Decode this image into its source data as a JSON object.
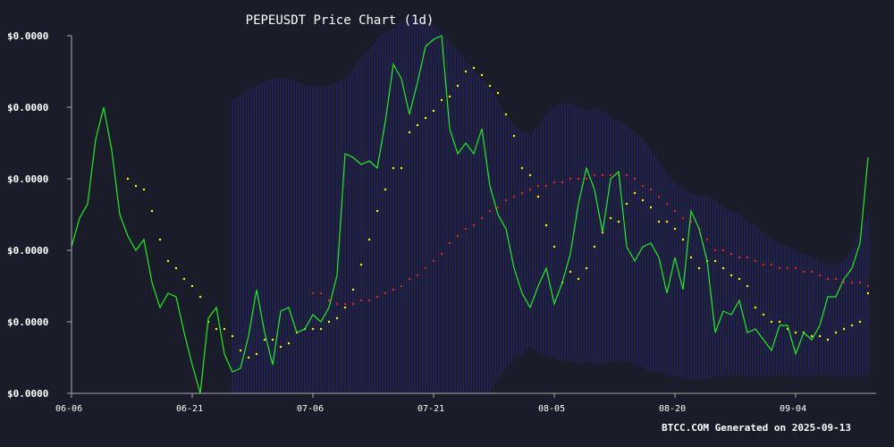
{
  "chart_data": {
    "type": "line",
    "title": "PEPEUSDT Price Chart (1d)",
    "footer": "BTCC.COM Generated on 2025-09-13",
    "y_tick_labels": [
      "$0.0000",
      "$0.0000",
      "$0.0000",
      "$0.0000",
      "$0.0000",
      "$0.0000"
    ],
    "x_tick_labels": [
      "06-06",
      "06-21",
      "07-06",
      "07-21",
      "08-05",
      "08-20",
      "09-04"
    ],
    "x_tick_days": [
      0,
      15,
      30,
      45,
      60,
      75,
      90
    ],
    "ylim": [
      0,
      100
    ],
    "grid": false,
    "colors": {
      "background": "#1a1d29",
      "price": "#22ee22",
      "sma_short": "#ffff00",
      "sma_long": "#ee2222",
      "band": "#2a2a8a",
      "axis": "#aaaaaa"
    },
    "series": [
      {
        "key": "price",
        "values": [
          41,
          49,
          53,
          71,
          80,
          68,
          50,
          44,
          40,
          43,
          31,
          24,
          28,
          27,
          17,
          8,
          0,
          21,
          24,
          11,
          6,
          7,
          16,
          29,
          17,
          8,
          23,
          24,
          17,
          18,
          22,
          20,
          24,
          33,
          67,
          66,
          64,
          65,
          63,
          76,
          92,
          88,
          78,
          87,
          97,
          99,
          100,
          74,
          67,
          70,
          67,
          74,
          58,
          50,
          46,
          35,
          28,
          24,
          30,
          35,
          25,
          31,
          39,
          53,
          63,
          57,
          45,
          60,
          62,
          41,
          37,
          41,
          42,
          38,
          28,
          38,
          29,
          51,
          46,
          37,
          17,
          23,
          22,
          26,
          17,
          18,
          15,
          12,
          19,
          19,
          11,
          17,
          15,
          19,
          27,
          27,
          32,
          35,
          42,
          66
        ]
      },
      {
        "key": "sma_short",
        "start": 7,
        "values": [
          60,
          58,
          57,
          51,
          43,
          37,
          35,
          32,
          30,
          27,
          20,
          18,
          18,
          16,
          12,
          10,
          11,
          15,
          15,
          13,
          14,
          17,
          18,
          18,
          18,
          20,
          21,
          24,
          29,
          36,
          43,
          51,
          57,
          63,
          63,
          73,
          75,
          77,
          79,
          82,
          83,
          86,
          90,
          91,
          89,
          86,
          84,
          78,
          72,
          63,
          61,
          55,
          47,
          41,
          31,
          34,
          32,
          35,
          41,
          45,
          49,
          48,
          53,
          56,
          54,
          52,
          48,
          48,
          46,
          43,
          38,
          35,
          37,
          37,
          35,
          33,
          32,
          30,
          24,
          22,
          20,
          20,
          18,
          17,
          17,
          16,
          16,
          15,
          17,
          18,
          19,
          20,
          28
        ]
      },
      {
        "key": "sma_long",
        "start": 30,
        "values": [
          28,
          28,
          26,
          25,
          25,
          25,
          26,
          26,
          27,
          28,
          29,
          30,
          32,
          33,
          35,
          37,
          39,
          42,
          44,
          46,
          47,
          49,
          51,
          52,
          54,
          55,
          56,
          57,
          58,
          58,
          59,
          59,
          60,
          60,
          60,
          61,
          61,
          61,
          61,
          61,
          60,
          58,
          57,
          55,
          53,
          51,
          49,
          48,
          46,
          43,
          40,
          40,
          39,
          38,
          38,
          37,
          36,
          36,
          35,
          35,
          35,
          34,
          34,
          33,
          32,
          32,
          31,
          31,
          31,
          30
        ]
      },
      {
        "key": "band_upper",
        "start": 20,
        "values": [
          82,
          83,
          85,
          86,
          87,
          88,
          88,
          88,
          87,
          86,
          86,
          86,
          86,
          87,
          88,
          91,
          94,
          96,
          99,
          101,
          102,
          104,
          105,
          105,
          104,
          103,
          101,
          98,
          96,
          93,
          90,
          88,
          86,
          82,
          78,
          75,
          73,
          72,
          75,
          78,
          80,
          81,
          81,
          80,
          79,
          80,
          79,
          77,
          76,
          75,
          73,
          71,
          68,
          65,
          61,
          59,
          57,
          56,
          55,
          55,
          54,
          52,
          51,
          50,
          48,
          47,
          45,
          43,
          42,
          41,
          40,
          39,
          38,
          37,
          36,
          36,
          37,
          40,
          45,
          50
        ]
      },
      {
        "key": "band_lower",
        "start": 20,
        "values": [
          0,
          0,
          0,
          0,
          0,
          0,
          0,
          0,
          0,
          0,
          0,
          0,
          0,
          0,
          0,
          0,
          0,
          0,
          0,
          0,
          0,
          0,
          0,
          0,
          0,
          0,
          0,
          0,
          0,
          0,
          0,
          0,
          0,
          4,
          7,
          10,
          11,
          13,
          12,
          10,
          10,
          9,
          9,
          8,
          9,
          8,
          8,
          9,
          9,
          9,
          8,
          7,
          6,
          6,
          5,
          5,
          4,
          4,
          4,
          4,
          5,
          5,
          5,
          5,
          5,
          5,
          5,
          5,
          5,
          5,
          5,
          5,
          5,
          5,
          5,
          5,
          5,
          5,
          5,
          5
        ]
      }
    ]
  }
}
